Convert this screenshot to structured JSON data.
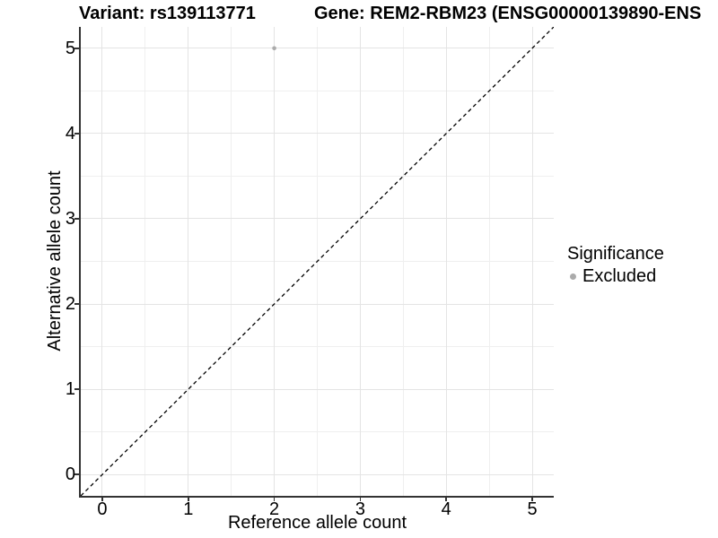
{
  "titles": {
    "left": "Variant: rs139113771",
    "right": "Gene: REM2-RBM23 (ENSG00000139890-ENS"
  },
  "legend": {
    "title": "Significance",
    "entries": [
      {
        "label": "Excluded",
        "color": "#ababab"
      }
    ]
  },
  "colors": {
    "background": "#ffffff",
    "axis_line": "#333333",
    "grid_major": "#e4e4e4",
    "grid_minor": "#efefef",
    "tick": "#333333",
    "text": "#000000",
    "point": "#ababab",
    "reference_line": "#000000"
  },
  "chart_data": {
    "type": "scatter",
    "title_left": "Variant: rs139113771",
    "title_right": "Gene: REM2-RBM23 (ENSG00000139890-ENS",
    "xlabel": "Reference allele count",
    "ylabel": "Alternative allele count",
    "xlim": [
      -0.25,
      5.25
    ],
    "ylim": [
      -0.25,
      5.25
    ],
    "x_major_ticks": [
      0,
      1,
      2,
      3,
      4,
      5
    ],
    "y_major_ticks": [
      0,
      1,
      2,
      3,
      4,
      5
    ],
    "x_minor_gridlines": [
      0.5,
      1.5,
      2.5,
      3.5,
      4.5
    ],
    "y_minor_gridlines": [
      0.5,
      1.5,
      2.5,
      3.5,
      4.5
    ],
    "grid": "major+minor",
    "legend_position": "right",
    "reference_line": {
      "kind": "identity",
      "from": [
        -0.25,
        -0.25
      ],
      "to": [
        5.25,
        5.25
      ],
      "style": "dashed",
      "color": "#000000"
    },
    "series": [
      {
        "name": "Excluded",
        "marker_color": "#ababab",
        "marker_radius": 2.3,
        "points": [
          [
            2,
            5
          ]
        ]
      }
    ]
  }
}
